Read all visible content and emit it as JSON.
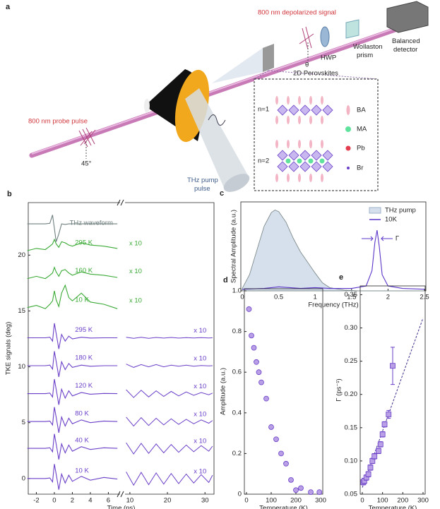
{
  "diagram": {
    "label": "a",
    "signal": "800 nm depolarized signal",
    "hwp": "HWP",
    "wollaston": [
      "Wollaston",
      "prism"
    ],
    "detector": [
      "Balanced",
      "detector"
    ],
    "theta": "θ",
    "probe": "800 nm probe pulse",
    "angle": "45°",
    "pump": [
      "THz pump",
      "pulse"
    ],
    "inset": {
      "title": "2D Perovskites",
      "rows": [
        "n=1",
        "n=2"
      ],
      "legend": [
        "BA",
        "MA",
        "Pb",
        "Br"
      ]
    }
  },
  "chart_data": [
    {
      "type": "line",
      "label": "b",
      "xlabel": "Time (ps)",
      "ylabel": "TKE signals (deg)",
      "x": [
        -3,
        -2,
        -1,
        -0.5,
        -0.2,
        0,
        0.2,
        0.5,
        0.8,
        1.2,
        1.6,
        2,
        3,
        4,
        5.5,
        7
      ],
      "x_long": [
        9,
        11,
        13,
        15,
        17,
        19,
        21,
        23,
        25,
        27,
        29,
        31,
        32
      ],
      "xlim": [
        -2.9,
        7.3
      ],
      "xlim_right": [
        8.7,
        32.4
      ],
      "xticks": [
        -2,
        0,
        2,
        4,
        6
      ],
      "xticks_right": [
        10,
        20,
        30
      ],
      "ylim": [
        -1.4,
        24.7
      ],
      "yticks": [
        0,
        5,
        10,
        15,
        20
      ],
      "series": [
        {
          "name": "THz waveform",
          "color": "#6f7f7f",
          "values": [
            22.8,
            22.8,
            22.8,
            22.85,
            23.6,
            22.4,
            21.2,
            21.9,
            22.8,
            22.75,
            22.8,
            22.8,
            22.8,
            22.8,
            22.8,
            22.8
          ]
        },
        {
          "name": "295 K",
          "scale_label": "x 10",
          "color": "#3aaa35",
          "values": [
            20.4,
            20.6,
            20.5,
            20.8,
            21.0,
            21.4,
            21.0,
            20.7,
            21.2,
            21.1,
            20.9,
            20.8,
            21.1,
            20.9,
            20.8,
            20.6
          ]
        },
        {
          "name": "160 K",
          "scale_label": "x 10",
          "color": "#3aaa35",
          "values": [
            17.9,
            18.1,
            17.9,
            18.2,
            18.4,
            18.9,
            18.5,
            18.1,
            18.6,
            18.7,
            18.4,
            18.2,
            18.5,
            18.3,
            18.2,
            18.0
          ]
        },
        {
          "name": "10 K",
          "scale_label": "x 10",
          "color": "#3aaa35",
          "values": [
            15.3,
            15.5,
            15.2,
            15.6,
            15.9,
            16.8,
            16.0,
            15.4,
            16.6,
            17.3,
            16.2,
            15.9,
            16.6,
            15.8,
            15.6,
            15.2
          ]
        },
        {
          "name": "295 K",
          "scale_label": "x 10",
          "color": "#6a3fc8",
          "values": [
            12.6,
            12.6,
            12.6,
            12.65,
            12.3,
            13.9,
            13.0,
            11.6,
            12.9,
            12.3,
            12.75,
            12.5,
            12.65,
            12.58,
            12.6,
            12.6
          ],
          "long_values": [
            12.65,
            12.55,
            12.65,
            12.55,
            12.63,
            12.57,
            12.63,
            12.57,
            12.62,
            12.58,
            12.62,
            12.58,
            12.6
          ]
        },
        {
          "name": "180 K",
          "scale_label": "x 10",
          "color": "#6a3fc8",
          "values": [
            10.1,
            10.1,
            10.1,
            10.15,
            9.8,
            11.4,
            10.5,
            9.1,
            10.45,
            9.75,
            10.3,
            9.95,
            10.15,
            10.05,
            10.1,
            10.1
          ],
          "long_values": [
            10.25,
            9.95,
            10.2,
            10.0,
            10.2,
            10.0,
            10.15,
            10.05,
            10.15,
            10.05,
            10.12,
            10.08,
            10.1
          ]
        },
        {
          "name": "120 K",
          "scale_label": "x 10",
          "color": "#6a3fc8",
          "values": [
            7.6,
            7.6,
            7.6,
            7.65,
            7.3,
            8.9,
            8.0,
            6.6,
            8.0,
            7.2,
            7.85,
            7.4,
            7.7,
            7.55,
            7.62,
            7.6
          ],
          "long_values": [
            7.95,
            7.25,
            7.9,
            7.3,
            7.85,
            7.35,
            7.8,
            7.4,
            7.75,
            7.45,
            7.7,
            7.5,
            7.65
          ]
        },
        {
          "name": "80 K",
          "scale_label": "x 10",
          "color": "#6a3fc8",
          "values": [
            5.1,
            5.1,
            5.1,
            5.15,
            4.8,
            6.4,
            5.5,
            4.1,
            5.5,
            4.7,
            5.4,
            4.9,
            5.25,
            5.0,
            5.15,
            5.1
          ],
          "long_values": [
            5.5,
            4.7,
            5.45,
            4.75,
            5.4,
            4.8,
            5.35,
            4.85,
            5.3,
            4.9,
            5.25,
            4.95,
            5.2
          ]
        },
        {
          "name": "40 K",
          "scale_label": "x 10",
          "color": "#6a3fc8",
          "values": [
            2.7,
            2.7,
            2.7,
            2.75,
            2.4,
            4.0,
            3.1,
            1.7,
            3.1,
            2.3,
            3.0,
            2.45,
            2.85,
            2.6,
            2.75,
            2.7
          ],
          "long_values": [
            3.2,
            2.2,
            3.15,
            2.25,
            3.1,
            2.3,
            3.05,
            2.35,
            3.0,
            2.4,
            2.95,
            2.45,
            2.9
          ]
        },
        {
          "name": "10 K",
          "scale_label": "x 10",
          "color": "#6a3fc8",
          "values": [
            0,
            0,
            0,
            0.05,
            -0.3,
            1.3,
            0.4,
            -1.0,
            0.4,
            -0.4,
            0.3,
            -0.25,
            0.2,
            -0.15,
            0.1,
            -0.05
          ],
          "long_values": [
            0.6,
            -0.6,
            0.55,
            -0.55,
            0.5,
            -0.5,
            0.45,
            -0.45,
            0.4,
            -0.4,
            0.35,
            -0.35,
            0.3
          ]
        }
      ]
    },
    {
      "type": "line",
      "label": "c",
      "xlabel": "Frequency (THz)",
      "ylabel": "Spectral Amplitude (a.u.)",
      "xlim": [
        0,
        2.5
      ],
      "xticks": [
        0,
        0.5,
        1,
        1.5,
        2,
        2.5
      ],
      "ylim": [
        0,
        1.1
      ],
      "legend": "upper right",
      "annotation": "Γ",
      "annotation_x": 1.85,
      "series": [
        {
          "name": "THz pump",
          "color": "#9fb3cc",
          "area": true,
          "x": [
            0,
            0.1,
            0.2,
            0.3,
            0.4,
            0.45,
            0.5,
            0.6,
            0.7,
            0.8,
            0.9,
            1.0,
            1.1,
            1.2,
            1.4,
            1.6,
            1.8,
            2.0,
            2.5
          ],
          "values": [
            0.03,
            0.2,
            0.5,
            0.8,
            0.97,
            1,
            0.98,
            0.85,
            0.65,
            0.48,
            0.35,
            0.22,
            0.1,
            0.04,
            0.01,
            0,
            0,
            0,
            0
          ]
        },
        {
          "name": "10K",
          "color": "#5b35c9",
          "x": [
            0,
            0.3,
            0.5,
            0.8,
            1.0,
            1.2,
            1.5,
            1.7,
            1.78,
            1.82,
            1.85,
            1.88,
            1.92,
            2.0,
            2.2,
            2.5
          ],
          "values": [
            0.02,
            0.03,
            0.05,
            0.03,
            0.04,
            0.03,
            0.03,
            0.06,
            0.25,
            0.6,
            0.75,
            0.55,
            0.2,
            0.06,
            0.03,
            0.02
          ]
        }
      ]
    },
    {
      "type": "scatter",
      "label": "d",
      "xlabel": "Temperature (K)",
      "ylabel": "Amplitude (a.u.)",
      "xlim": [
        0,
        300
      ],
      "xticks": [
        0,
        100,
        200,
        300
      ],
      "ylim": [
        0,
        1
      ],
      "yticks": [
        0,
        0.2,
        0.4,
        0.6,
        0.8,
        {
          "value": 1,
          "label": "1.0"
        }
      ],
      "color": "#6a3fc8",
      "x": [
        10,
        20,
        30,
        40,
        50,
        60,
        80,
        100,
        120,
        140,
        160,
        180,
        200,
        220,
        260,
        295
      ],
      "values": [
        0.91,
        0.78,
        0.72,
        0.65,
        0.6,
        0.55,
        0.47,
        0.33,
        0.27,
        0.2,
        0.15,
        0.07,
        0.02,
        0.03,
        0.01,
        0.01
      ]
    },
    {
      "type": "scatter",
      "label": "e",
      "xlabel": "Temperature (K)",
      "ylabel": "Γ (ps⁻¹)",
      "xlim": [
        0,
        300
      ],
      "xticks": [
        0,
        100,
        200,
        300
      ],
      "ylim": [
        0.05,
        0.36
      ],
      "yticks": [
        0.05,
        {
          "value": 0.1,
          "label": "0.10"
        },
        0.15,
        {
          "value": 0.2,
          "label": "0.20"
        },
        0.25,
        {
          "value": 0.3,
          "label": "0.30"
        },
        0.35
      ],
      "color": "#6a3fc8",
      "x": [
        5,
        10,
        20,
        30,
        40,
        50,
        60,
        80,
        90,
        100,
        110,
        130,
        150
      ],
      "values": [
        0.068,
        0.07,
        0.075,
        0.08,
        0.09,
        0.1,
        0.107,
        0.115,
        0.125,
        0.14,
        0.155,
        0.17,
        0.243
      ],
      "errors": [
        0.004,
        0.004,
        0.004,
        0.004,
        0.004,
        0.004,
        0.004,
        0.004,
        0.004,
        0.004,
        0.004,
        0.006,
        0.028
      ],
      "fit": {
        "x": [
          0,
          300
        ],
        "values": [
          0.06,
          0.315
        ]
      }
    }
  ]
}
